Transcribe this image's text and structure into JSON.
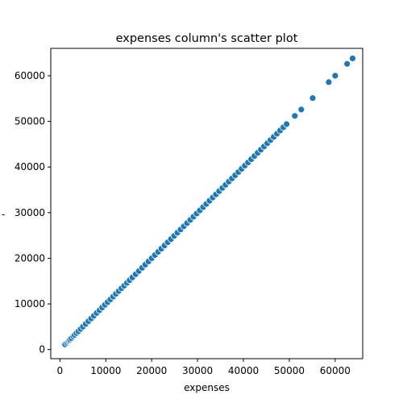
{
  "chart_data": {
    "type": "scatter",
    "title": "expenses column's scatter plot",
    "xlabel": "expenses",
    "ylabel": "-",
    "xlim": [
      -2000,
      66000
    ],
    "ylim": [
      -2000,
      66000
    ],
    "xticks": [
      0,
      10000,
      20000,
      30000,
      40000,
      50000,
      60000
    ],
    "yticks": [
      0,
      10000,
      20000,
      30000,
      40000,
      50000,
      60000
    ],
    "grid": false,
    "marker_color": "#1f77b4",
    "x": [
      1121,
      1500,
      1800,
      2000,
      2200,
      2500,
      2900,
      3200,
      3600,
      4000,
      4500,
      5000,
      5600,
      6200,
      6800,
      7400,
      8000,
      8600,
      9200,
      9800,
      10400,
      11000,
      11600,
      12200,
      12800,
      13400,
      14000,
      14600,
      15200,
      15800,
      16500,
      17200,
      17900,
      18600,
      19300,
      20000,
      20700,
      21400,
      22100,
      22800,
      23500,
      24200,
      24900,
      25600,
      26300,
      27000,
      27700,
      28400,
      29100,
      29800,
      30500,
      31200,
      31900,
      32600,
      33300,
      34000,
      34700,
      35400,
      36100,
      36800,
      37500,
      38200,
      38900,
      39600,
      40300,
      41000,
      41700,
      42400,
      43100,
      43800,
      44500,
      45200,
      45900,
      46600,
      47300,
      48000,
      48700,
      49400,
      51200,
      52600,
      55100,
      58600,
      60000,
      62600,
      63800
    ],
    "y": [
      1121,
      1500,
      1800,
      2000,
      2200,
      2500,
      2900,
      3200,
      3600,
      4000,
      4500,
      5000,
      5600,
      6200,
      6800,
      7400,
      8000,
      8600,
      9200,
      9800,
      10400,
      11000,
      11600,
      12200,
      12800,
      13400,
      14000,
      14600,
      15200,
      15800,
      16500,
      17200,
      17900,
      18600,
      19300,
      20000,
      20700,
      21400,
      22100,
      22800,
      23500,
      24200,
      24900,
      25600,
      26300,
      27000,
      27700,
      28400,
      29100,
      29800,
      30500,
      31200,
      31900,
      32600,
      33300,
      34000,
      34700,
      35400,
      36100,
      36800,
      37500,
      38200,
      38900,
      39600,
      40300,
      41000,
      41700,
      42400,
      43100,
      43800,
      44500,
      45200,
      45900,
      46600,
      47300,
      48000,
      48700,
      49400,
      51200,
      52600,
      55100,
      58600,
      60000,
      62600,
      63800
    ]
  }
}
